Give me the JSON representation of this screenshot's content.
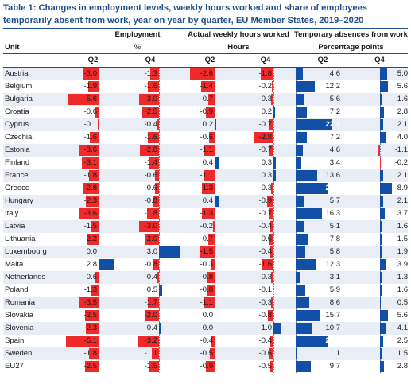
{
  "title": "Table 1: Changes in employment levels, weekly hours worked and share of employees temporarily absent from work, year on year by quarter, EU Member States, 2019–2020",
  "headers": {
    "unit": "Unit",
    "employment": "Employment",
    "employment_unit": "%",
    "hours": "Actual weekly hours worked",
    "hours_unit": "Hours",
    "absences": "Temporary absences from work",
    "absences_unit": "Percentage points",
    "q2": "Q2",
    "q4": "Q4"
  },
  "colors": {
    "negative": "#ef2a2a",
    "positive": "#1250a8",
    "title": "#1f4e8c"
  },
  "rows": [
    {
      "unit": "Austria",
      "emp_q2": -3.0,
      "emp_q4": -1.3,
      "hrs_q2": -2.6,
      "hrs_q4": -1.8,
      "abs_q2": 4.6,
      "abs_q4": 5.0
    },
    {
      "unit": "Belgium",
      "emp_q2": -1.9,
      "emp_q4": -1.6,
      "hrs_q2": -1.4,
      "hrs_q4": -0.2,
      "abs_q2": 12.2,
      "abs_q4": 5.6
    },
    {
      "unit": "Bulgaria",
      "emp_q2": -5.6,
      "emp_q4": -3.0,
      "hrs_q2": -0.7,
      "hrs_q4": -0.3,
      "abs_q2": 5.6,
      "abs_q4": 1.6
    },
    {
      "unit": "Croatia",
      "emp_q2": -0.6,
      "emp_q4": -2.5,
      "hrs_q2": -0.9,
      "hrs_q4": 0.2,
      "abs_q2": 7.2,
      "abs_q4": 2.8
    },
    {
      "unit": "Cyprus",
      "emp_q2": -0.1,
      "emp_q4": -0.4,
      "hrs_q2": 0.2,
      "hrs_q4": -0.7,
      "abs_q2": 22.7,
      "abs_q4": 2.1
    },
    {
      "unit": "Czechia",
      "emp_q2": -1.6,
      "emp_q4": -1.6,
      "hrs_q2": -0.6,
      "hrs_q4": -2.8,
      "abs_q2": 7.2,
      "abs_q4": 4.0
    },
    {
      "unit": "Estonia",
      "emp_q2": -3.6,
      "emp_q4": -2.8,
      "hrs_q2": -1.1,
      "hrs_q4": -0.7,
      "abs_q2": 4.6,
      "abs_q4": -1.1
    },
    {
      "unit": "Finland",
      "emp_q2": -3.1,
      "emp_q4": -1.4,
      "hrs_q2": 0.4,
      "hrs_q4": 0.3,
      "abs_q2": 3.4,
      "abs_q4": -0.2
    },
    {
      "unit": "France",
      "emp_q2": -1.8,
      "emp_q4": -0.6,
      "hrs_q2": -1.1,
      "hrs_q4": 0.3,
      "abs_q2": 13.6,
      "abs_q4": 2.1
    },
    {
      "unit": "Greece",
      "emp_q2": -2.8,
      "emp_q4": -0.6,
      "hrs_q2": -1.3,
      "hrs_q4": -0.3,
      "abs_q2": 20.3,
      "abs_q4": 8.9
    },
    {
      "unit": "Hungary",
      "emp_q2": -2.3,
      "emp_q4": -0.8,
      "hrs_q2": 0.4,
      "hrs_q4": -0.9,
      "abs_q2": 5.7,
      "abs_q4": 2.1
    },
    {
      "unit": "Italy",
      "emp_q2": -3.6,
      "emp_q4": -1.8,
      "hrs_q2": -1.3,
      "hrs_q4": -0.7,
      "abs_q2": 16.3,
      "abs_q4": 3.7
    },
    {
      "unit": "Latvia",
      "emp_q2": -1.5,
      "emp_q4": -3.0,
      "hrs_q2": -0.2,
      "hrs_q4": -0.4,
      "abs_q2": 5.1,
      "abs_q4": 1.6
    },
    {
      "unit": "Lithuania",
      "emp_q2": -2.2,
      "emp_q4": -2.0,
      "hrs_q2": -0.7,
      "hrs_q4": -0.6,
      "abs_q2": 7.8,
      "abs_q4": 1.5
    },
    {
      "unit": "Luxembourg",
      "emp_q2": 0.0,
      "emp_q4": 3.0,
      "hrs_q2": -1.5,
      "hrs_q4": -0.4,
      "abs_q2": 5.8,
      "abs_q4": 1.9
    },
    {
      "unit": "Malta",
      "emp_q2": 2.8,
      "emp_q4": -0.8,
      "hrs_q2": -0.3,
      "hrs_q4": -1.6,
      "abs_q2": 12.3,
      "abs_q4": 3.9
    },
    {
      "unit": "Netherlands",
      "emp_q2": -0.6,
      "emp_q4": -0.4,
      "hrs_q2": -0.8,
      "hrs_q4": -0.3,
      "abs_q2": 3.1,
      "abs_q4": 1.3
    },
    {
      "unit": "Poland",
      "emp_q2": -1.3,
      "emp_q4": 0.5,
      "hrs_q2": -0.8,
      "hrs_q4": -0.1,
      "abs_q2": 5.9,
      "abs_q4": 1.6
    },
    {
      "unit": "Romania",
      "emp_q2": -3.5,
      "emp_q4": -1.7,
      "hrs_q2": -1.1,
      "hrs_q4": -0.3,
      "abs_q2": 8.6,
      "abs_q4": 0.5
    },
    {
      "unit": "Slovakia",
      "emp_q2": -2.5,
      "emp_q4": -2.0,
      "hrs_q2": 0.0,
      "hrs_q4": -0.8,
      "abs_q2": 15.7,
      "abs_q4": 5.6
    },
    {
      "unit": "Slovenia",
      "emp_q2": -2.3,
      "emp_q4": 0.4,
      "hrs_q2": 0.0,
      "hrs_q4": 1.0,
      "abs_q2": 10.7,
      "abs_q4": 4.1
    },
    {
      "unit": "Spain",
      "emp_q2": -6.1,
      "emp_q4": -3.2,
      "hrs_q2": -0.4,
      "hrs_q4": -0.4,
      "abs_q2": 20.6,
      "abs_q4": 2.5
    },
    {
      "unit": "Sweden",
      "emp_q2": -1.8,
      "emp_q4": -1.1,
      "hrs_q2": -0.5,
      "hrs_q4": -0.6,
      "abs_q2": 1.1,
      "abs_q4": 1.5
    },
    {
      "unit": "EU27",
      "emp_q2": -2.5,
      "emp_q4": -1.5,
      "hrs_q2": -0.9,
      "hrs_q4": -0.5,
      "abs_q2": 9.7,
      "abs_q4": 2.8
    }
  ]
}
